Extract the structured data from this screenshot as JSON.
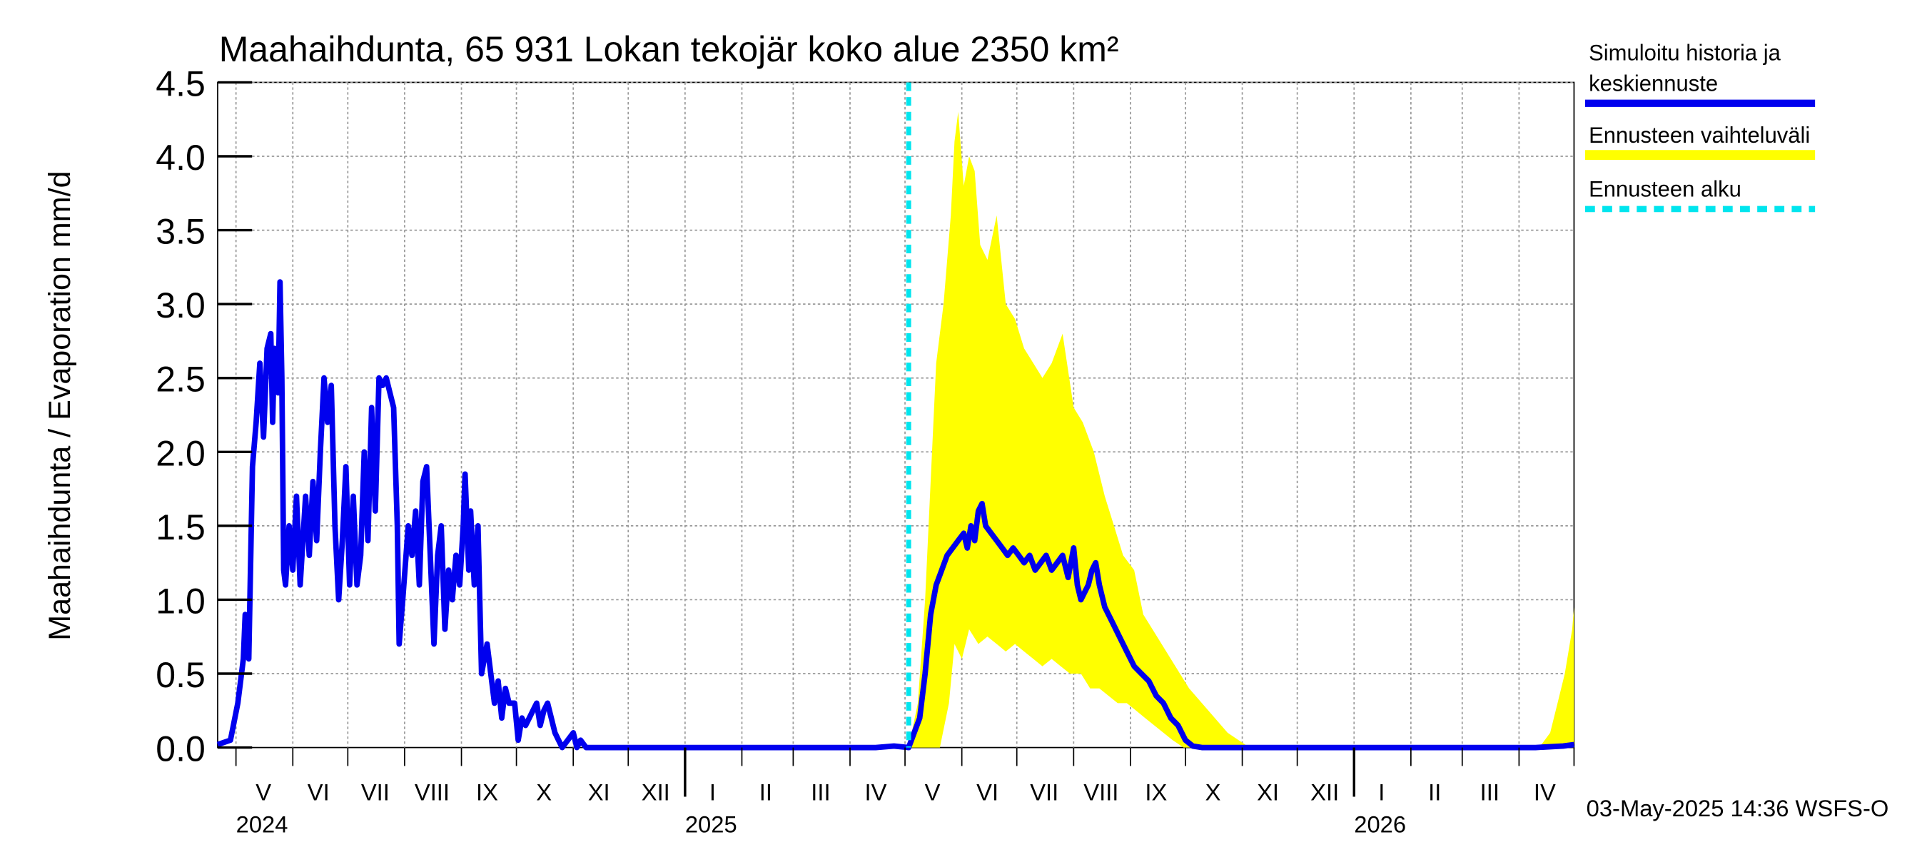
{
  "chart_data": {
    "type": "area",
    "title": "Maahaihdunta, 65 931 Lokan tekojär koko alue 2350 km²",
    "ylabel": "Maahaihdunta / Evaporation   mm/d",
    "ylim": [
      0,
      4.5
    ],
    "yticks": [
      "0.0",
      "0.5",
      "1.0",
      "1.5",
      "2.0",
      "2.5",
      "3.0",
      "3.5",
      "4.0",
      "4.5"
    ],
    "grid": true,
    "legend_position": "right",
    "x_start": "2024-04-21",
    "x_end": "2026-05-01",
    "month_labels": [
      {
        "label": "V",
        "date": "2024-05-16"
      },
      {
        "label": "VI",
        "date": "2024-06-15"
      },
      {
        "label": "VII",
        "date": "2024-07-16"
      },
      {
        "label": "VIII",
        "date": "2024-08-16"
      },
      {
        "label": "IX",
        "date": "2024-09-15"
      },
      {
        "label": "X",
        "date": "2024-10-16"
      },
      {
        "label": "XI",
        "date": "2024-11-15"
      },
      {
        "label": "XII",
        "date": "2024-12-16"
      },
      {
        "label": "I",
        "date": "2025-01-16"
      },
      {
        "label": "II",
        "date": "2025-02-14"
      },
      {
        "label": "III",
        "date": "2025-03-16"
      },
      {
        "label": "IV",
        "date": "2025-04-15"
      },
      {
        "label": "V",
        "date": "2025-05-16"
      },
      {
        "label": "VI",
        "date": "2025-06-15"
      },
      {
        "label": "VII",
        "date": "2025-07-16"
      },
      {
        "label": "VIII",
        "date": "2025-08-16"
      },
      {
        "label": "IX",
        "date": "2025-09-15"
      },
      {
        "label": "X",
        "date": "2025-10-16"
      },
      {
        "label": "XI",
        "date": "2025-11-15"
      },
      {
        "label": "XII",
        "date": "2025-12-16"
      },
      {
        "label": "I",
        "date": "2026-01-16"
      },
      {
        "label": "II",
        "date": "2026-02-14"
      },
      {
        "label": "III",
        "date": "2026-03-16"
      },
      {
        "label": "IV",
        "date": "2026-04-15"
      }
    ],
    "month_boundaries": [
      "2024-05-01",
      "2024-06-01",
      "2024-07-01",
      "2024-08-01",
      "2024-09-01",
      "2024-10-01",
      "2024-11-01",
      "2024-12-01",
      "2025-01-01",
      "2025-02-01",
      "2025-03-01",
      "2025-04-01",
      "2025-05-01",
      "2025-06-01",
      "2025-07-01",
      "2025-08-01",
      "2025-09-01",
      "2025-10-01",
      "2025-11-01",
      "2025-12-01",
      "2026-01-01",
      "2026-02-01",
      "2026-03-01",
      "2026-04-01",
      "2026-05-01"
    ],
    "year_labels": [
      {
        "label": "2024",
        "date": "2024-05-01"
      },
      {
        "label": "2025",
        "date": "2025-01-01"
      },
      {
        "label": "2026",
        "date": "2026-01-01"
      }
    ],
    "forecast_start": "2025-05-03",
    "series": [
      {
        "name": "Simuloitu historia ja keskiennuste",
        "color": "#0000ee",
        "points": [
          [
            "2024-04-21",
            0.02
          ],
          [
            "2024-04-28",
            0.05
          ],
          [
            "2024-05-02",
            0.3
          ],
          [
            "2024-05-05",
            0.6
          ],
          [
            "2024-05-06",
            0.9
          ],
          [
            "2024-05-08",
            0.6
          ],
          [
            "2024-05-10",
            1.9
          ],
          [
            "2024-05-12",
            2.2
          ],
          [
            "2024-05-14",
            2.6
          ],
          [
            "2024-05-16",
            2.1
          ],
          [
            "2024-05-18",
            2.7
          ],
          [
            "2024-05-20",
            2.8
          ],
          [
            "2024-05-21",
            2.2
          ],
          [
            "2024-05-22",
            2.7
          ],
          [
            "2024-05-24",
            2.4
          ],
          [
            "2024-05-25",
            3.15
          ],
          [
            "2024-05-26",
            2.5
          ],
          [
            "2024-05-27",
            1.2
          ],
          [
            "2024-05-28",
            1.1
          ],
          [
            "2024-05-30",
            1.5
          ],
          [
            "2024-06-01",
            1.2
          ],
          [
            "2024-06-03",
            1.7
          ],
          [
            "2024-06-05",
            1.1
          ],
          [
            "2024-06-08",
            1.7
          ],
          [
            "2024-06-10",
            1.3
          ],
          [
            "2024-06-12",
            1.8
          ],
          [
            "2024-06-14",
            1.4
          ],
          [
            "2024-06-16",
            2.0
          ],
          [
            "2024-06-18",
            2.5
          ],
          [
            "2024-06-20",
            2.2
          ],
          [
            "2024-06-22",
            2.45
          ],
          [
            "2024-06-24",
            1.5
          ],
          [
            "2024-06-26",
            1.0
          ],
          [
            "2024-06-28",
            1.4
          ],
          [
            "2024-06-30",
            1.9
          ],
          [
            "2024-07-02",
            1.1
          ],
          [
            "2024-07-04",
            1.7
          ],
          [
            "2024-07-06",
            1.1
          ],
          [
            "2024-07-08",
            1.3
          ],
          [
            "2024-07-10",
            2.0
          ],
          [
            "2024-07-12",
            1.4
          ],
          [
            "2024-07-14",
            2.3
          ],
          [
            "2024-07-16",
            1.6
          ],
          [
            "2024-07-18",
            2.5
          ],
          [
            "2024-07-20",
            2.45
          ],
          [
            "2024-07-22",
            2.5
          ],
          [
            "2024-07-24",
            2.4
          ],
          [
            "2024-07-26",
            2.3
          ],
          [
            "2024-07-28",
            1.5
          ],
          [
            "2024-07-29",
            0.7
          ],
          [
            "2024-07-31",
            1.0
          ],
          [
            "2024-08-03",
            1.5
          ],
          [
            "2024-08-05",
            1.3
          ],
          [
            "2024-08-07",
            1.6
          ],
          [
            "2024-08-09",
            1.1
          ],
          [
            "2024-08-11",
            1.8
          ],
          [
            "2024-08-13",
            1.9
          ],
          [
            "2024-08-15",
            1.3
          ],
          [
            "2024-08-17",
            0.7
          ],
          [
            "2024-08-19",
            1.3
          ],
          [
            "2024-08-21",
            1.5
          ],
          [
            "2024-08-23",
            0.8
          ],
          [
            "2024-08-25",
            1.2
          ],
          [
            "2024-08-27",
            1.0
          ],
          [
            "2024-08-29",
            1.3
          ],
          [
            "2024-08-31",
            1.1
          ],
          [
            "2024-09-02",
            1.5
          ],
          [
            "2024-09-03",
            1.85
          ],
          [
            "2024-09-05",
            1.2
          ],
          [
            "2024-09-06",
            1.6
          ],
          [
            "2024-09-08",
            1.1
          ],
          [
            "2024-09-10",
            1.5
          ],
          [
            "2024-09-12",
            0.5
          ],
          [
            "2024-09-15",
            0.7
          ],
          [
            "2024-09-17",
            0.5
          ],
          [
            "2024-09-19",
            0.3
          ],
          [
            "2024-09-21",
            0.45
          ],
          [
            "2024-09-23",
            0.2
          ],
          [
            "2024-09-25",
            0.4
          ],
          [
            "2024-09-27",
            0.3
          ],
          [
            "2024-09-30",
            0.3
          ],
          [
            "2024-10-02",
            0.05
          ],
          [
            "2024-10-04",
            0.2
          ],
          [
            "2024-10-06",
            0.15
          ],
          [
            "2024-10-08",
            0.2
          ],
          [
            "2024-10-10",
            0.25
          ],
          [
            "2024-10-12",
            0.3
          ],
          [
            "2024-10-14",
            0.15
          ],
          [
            "2024-10-16",
            0.25
          ],
          [
            "2024-10-18",
            0.3
          ],
          [
            "2024-10-20",
            0.2
          ],
          [
            "2024-10-22",
            0.1
          ],
          [
            "2024-10-24",
            0.05
          ],
          [
            "2024-10-26",
            0.0
          ],
          [
            "2024-11-01",
            0.1
          ],
          [
            "2024-11-03",
            0.0
          ],
          [
            "2024-11-05",
            0.05
          ],
          [
            "2024-11-08",
            0.0
          ],
          [
            "2025-04-15",
            0.0
          ],
          [
            "2025-04-25",
            0.01
          ],
          [
            "2025-05-03",
            0.0
          ],
          [
            "2025-05-06",
            0.1
          ],
          [
            "2025-05-09",
            0.2
          ],
          [
            "2025-05-12",
            0.5
          ],
          [
            "2025-05-15",
            0.9
          ],
          [
            "2025-05-18",
            1.1
          ],
          [
            "2025-05-21",
            1.2
          ],
          [
            "2025-05-24",
            1.3
          ],
          [
            "2025-05-27",
            1.35
          ],
          [
            "2025-05-30",
            1.4
          ],
          [
            "2025-06-02",
            1.45
          ],
          [
            "2025-06-04",
            1.35
          ],
          [
            "2025-06-06",
            1.5
          ],
          [
            "2025-06-08",
            1.4
          ],
          [
            "2025-06-10",
            1.6
          ],
          [
            "2025-06-12",
            1.65
          ],
          [
            "2025-06-14",
            1.5
          ],
          [
            "2025-06-17",
            1.45
          ],
          [
            "2025-06-20",
            1.4
          ],
          [
            "2025-06-23",
            1.35
          ],
          [
            "2025-06-26",
            1.3
          ],
          [
            "2025-06-29",
            1.35
          ],
          [
            "2025-07-02",
            1.3
          ],
          [
            "2025-07-05",
            1.25
          ],
          [
            "2025-07-08",
            1.3
          ],
          [
            "2025-07-11",
            1.2
          ],
          [
            "2025-07-14",
            1.25
          ],
          [
            "2025-07-17",
            1.3
          ],
          [
            "2025-07-20",
            1.2
          ],
          [
            "2025-07-23",
            1.25
          ],
          [
            "2025-07-26",
            1.3
          ],
          [
            "2025-07-29",
            1.15
          ],
          [
            "2025-08-01",
            1.35
          ],
          [
            "2025-08-03",
            1.1
          ],
          [
            "2025-08-05",
            1.0
          ],
          [
            "2025-08-07",
            1.05
          ],
          [
            "2025-08-09",
            1.1
          ],
          [
            "2025-08-11",
            1.2
          ],
          [
            "2025-08-13",
            1.25
          ],
          [
            "2025-08-15",
            1.1
          ],
          [
            "2025-08-18",
            0.95
          ],
          [
            "2025-08-22",
            0.85
          ],
          [
            "2025-08-26",
            0.75
          ],
          [
            "2025-08-30",
            0.65
          ],
          [
            "2025-09-03",
            0.55
          ],
          [
            "2025-09-07",
            0.5
          ],
          [
            "2025-09-11",
            0.45
          ],
          [
            "2025-09-15",
            0.35
          ],
          [
            "2025-09-19",
            0.3
          ],
          [
            "2025-09-23",
            0.2
          ],
          [
            "2025-09-27",
            0.15
          ],
          [
            "2025-10-01",
            0.05
          ],
          [
            "2025-10-05",
            0.01
          ],
          [
            "2025-10-10",
            0.0
          ],
          [
            "2026-04-10",
            0.0
          ],
          [
            "2026-04-25",
            0.01
          ],
          [
            "2026-05-01",
            0.02
          ]
        ]
      },
      {
        "name": "Ennusteen vaihteluväli",
        "color": "#ffff00",
        "upper": [
          [
            "2025-05-03",
            0.0
          ],
          [
            "2025-05-08",
            0.3
          ],
          [
            "2025-05-12",
            1.0
          ],
          [
            "2025-05-15",
            1.8
          ],
          [
            "2025-05-18",
            2.6
          ],
          [
            "2025-05-22",
            3.0
          ],
          [
            "2025-05-26",
            3.6
          ],
          [
            "2025-05-28",
            4.1
          ],
          [
            "2025-05-30",
            4.3
          ],
          [
            "2025-06-02",
            3.8
          ],
          [
            "2025-06-05",
            4.0
          ],
          [
            "2025-06-08",
            3.9
          ],
          [
            "2025-06-11",
            3.4
          ],
          [
            "2025-06-15",
            3.3
          ],
          [
            "2025-06-20",
            3.6
          ],
          [
            "2025-06-25",
            3.0
          ],
          [
            "2025-06-30",
            2.9
          ],
          [
            "2025-07-05",
            2.7
          ],
          [
            "2025-07-10",
            2.6
          ],
          [
            "2025-07-15",
            2.5
          ],
          [
            "2025-07-20",
            2.6
          ],
          [
            "2025-07-26",
            2.8
          ],
          [
            "2025-08-01",
            2.3
          ],
          [
            "2025-08-06",
            2.2
          ],
          [
            "2025-08-12",
            2.0
          ],
          [
            "2025-08-18",
            1.7
          ],
          [
            "2025-08-23",
            1.5
          ],
          [
            "2025-08-28",
            1.3
          ],
          [
            "2025-09-03",
            1.2
          ],
          [
            "2025-09-08",
            0.9
          ],
          [
            "2025-09-13",
            0.8
          ],
          [
            "2025-09-18",
            0.7
          ],
          [
            "2025-09-23",
            0.6
          ],
          [
            "2025-09-28",
            0.5
          ],
          [
            "2025-10-03",
            0.4
          ],
          [
            "2025-10-10",
            0.3
          ],
          [
            "2025-10-17",
            0.2
          ],
          [
            "2025-10-24",
            0.1
          ],
          [
            "2025-10-30",
            0.05
          ],
          [
            "2025-11-05",
            0.0
          ],
          [
            "2026-04-12",
            0.0
          ],
          [
            "2026-04-18",
            0.1
          ],
          [
            "2026-04-22",
            0.3
          ],
          [
            "2026-04-26",
            0.5
          ],
          [
            "2026-04-30",
            0.8
          ],
          [
            "2026-05-01",
            0.95
          ]
        ],
        "lower": [
          [
            "2025-05-03",
            0.0
          ],
          [
            "2025-05-20",
            0.0
          ],
          [
            "2025-05-25",
            0.3
          ],
          [
            "2025-05-28",
            0.7
          ],
          [
            "2025-06-01",
            0.6
          ],
          [
            "2025-06-05",
            0.8
          ],
          [
            "2025-06-10",
            0.7
          ],
          [
            "2025-06-15",
            0.75
          ],
          [
            "2025-06-20",
            0.7
          ],
          [
            "2025-06-25",
            0.65
          ],
          [
            "2025-06-30",
            0.7
          ],
          [
            "2025-07-05",
            0.65
          ],
          [
            "2025-07-10",
            0.6
          ],
          [
            "2025-07-15",
            0.55
          ],
          [
            "2025-07-20",
            0.6
          ],
          [
            "2025-07-25",
            0.55
          ],
          [
            "2025-07-30",
            0.5
          ],
          [
            "2025-08-05",
            0.5
          ],
          [
            "2025-08-10",
            0.4
          ],
          [
            "2025-08-15",
            0.4
          ],
          [
            "2025-08-20",
            0.35
          ],
          [
            "2025-08-25",
            0.3
          ],
          [
            "2025-08-30",
            0.3
          ],
          [
            "2025-09-04",
            0.25
          ],
          [
            "2025-09-09",
            0.2
          ],
          [
            "2025-09-14",
            0.15
          ],
          [
            "2025-09-19",
            0.1
          ],
          [
            "2025-09-24",
            0.05
          ],
          [
            "2025-09-30",
            0.0
          ],
          [
            "2026-05-01",
            0.0
          ]
        ]
      },
      {
        "name": "Ennusteen alku",
        "color": "#00e5ee"
      }
    ]
  },
  "legend": {
    "item1_line1": "Simuloitu historia ja",
    "item1_line2": "keskiennuste",
    "item2": "Ennusteen vaihteluväli",
    "item3": "Ennusteen alku"
  },
  "footer": {
    "timestamp": "03-May-2025 14:36 WSFS-O"
  }
}
